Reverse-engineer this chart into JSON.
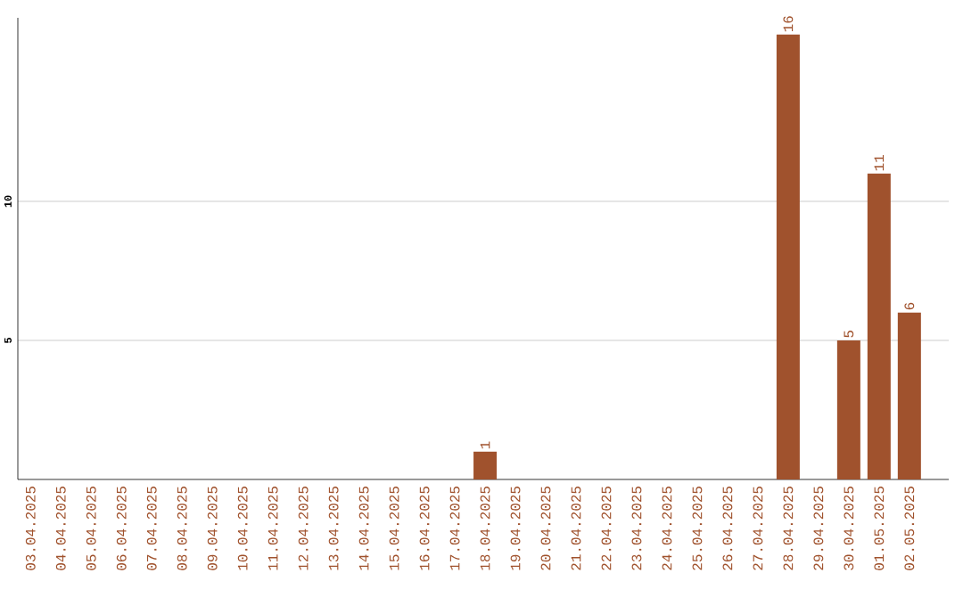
{
  "chart_data": {
    "type": "bar",
    "categories": [
      "03.04.2025",
      "04.04.2025",
      "05.04.2025",
      "06.04.2025",
      "07.04.2025",
      "08.04.2025",
      "09.04.2025",
      "10.04.2025",
      "11.04.2025",
      "12.04.2025",
      "13.04.2025",
      "14.04.2025",
      "15.04.2025",
      "16.04.2025",
      "17.04.2025",
      "18.04.2025",
      "19.04.2025",
      "20.04.2025",
      "21.04.2025",
      "22.04.2025",
      "23.04.2025",
      "24.04.2025",
      "25.04.2025",
      "26.04.2025",
      "27.04.2025",
      "28.04.2025",
      "29.04.2025",
      "30.04.2025",
      "01.05.2025",
      "02.05.2025"
    ],
    "values": [
      0,
      0,
      0,
      0,
      0,
      0,
      0,
      0,
      0,
      0,
      0,
      0,
      0,
      0,
      0,
      1,
      0,
      0,
      0,
      0,
      0,
      0,
      0,
      0,
      0,
      16,
      0,
      5,
      11,
      6
    ],
    "value_labels": [
      null,
      null,
      null,
      null,
      null,
      null,
      null,
      null,
      null,
      null,
      null,
      null,
      null,
      null,
      null,
      "1",
      null,
      null,
      null,
      null,
      null,
      null,
      null,
      null,
      null,
      "16",
      null,
      "5",
      "11",
      "6"
    ],
    "color": "#a0522d",
    "ylim": [
      0,
      16.6
    ],
    "yticks": [
      5,
      10
    ],
    "grid": "y"
  }
}
